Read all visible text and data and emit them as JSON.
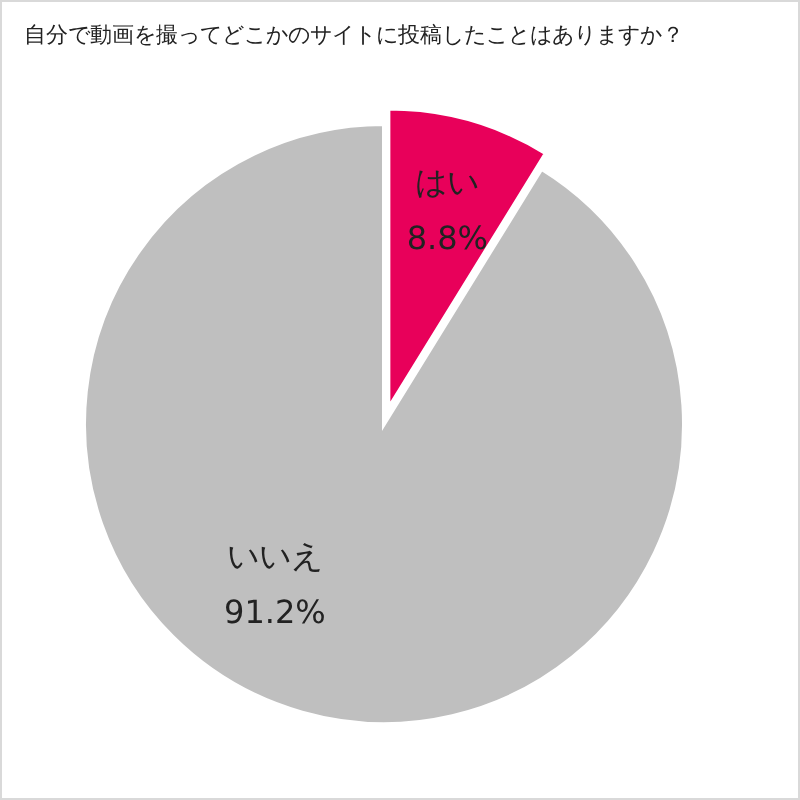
{
  "chart_data": {
    "type": "pie",
    "title": "自分で動画を撮ってどこかのサイトに投稿したことはありますか？",
    "categories": [
      "はい",
      "いいえ"
    ],
    "values": [
      8.8,
      91.2
    ],
    "value_labels": [
      "8.8%",
      "91.2%"
    ],
    "colors": [
      "#e8005a",
      "#bfbfbf"
    ],
    "legend": false
  }
}
